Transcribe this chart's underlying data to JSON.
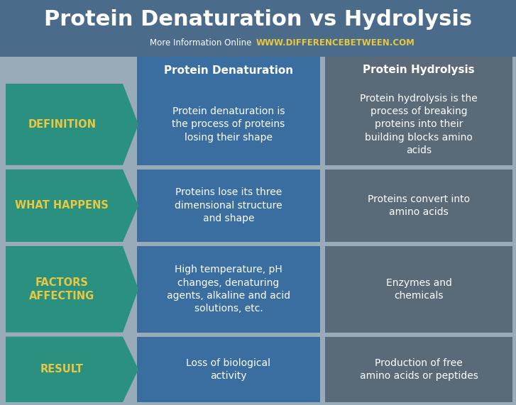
{
  "title": "Protein Denaturation vs Hydrolysis",
  "title_color": "#FFFFFF",
  "title_fontsize": 22,
  "subtitle_plain": "More Information Online ",
  "subtitle_url": "WWW.DIFFERENCEBETWEEN.COM",
  "subtitle_plain_color": "#FFFFFF",
  "subtitle_url_color": "#E8C840",
  "bg_header_color": "#4A6B8A",
  "bg_main_color": "#9AABB8",
  "col1_header": "Protein Denaturation",
  "col2_header": "Protein Hydrolysis",
  "col_header_color": "#FFFFFF",
  "col1_header_bg": "#3A6EA0",
  "col2_header_bg": "#5A6A78",
  "arrow_color": "#2A9080",
  "arrow_text_color": "#E8C840",
  "cell1_bg": "#3A6EA0",
  "cell2_bg": "#5A6A78",
  "rows": [
    {
      "label": "DEFINITION",
      "col1": "Protein denaturation is\nthe process of proteins\nlosing their shape",
      "col2": "Protein hydrolysis is the\nprocess of breaking\nproteins into their\nbuilding blocks amino\nacids"
    },
    {
      "label": "WHAT HAPPENS",
      "col1": "Proteins lose its three\ndimensional structure\nand shape",
      "col2": "Proteins convert into\namino acids"
    },
    {
      "label": "FACTORS\nAFFECTING",
      "col1": "High temperature, pH\nchanges, denaturing\nagents, alkaline and acid\nsolutions, etc.",
      "col2": "Enzymes and\nchemicals"
    },
    {
      "label": "RESULT",
      "col1": "Loss of biological\nactivity",
      "col2": "Production of free\namino acids or peptides"
    }
  ]
}
